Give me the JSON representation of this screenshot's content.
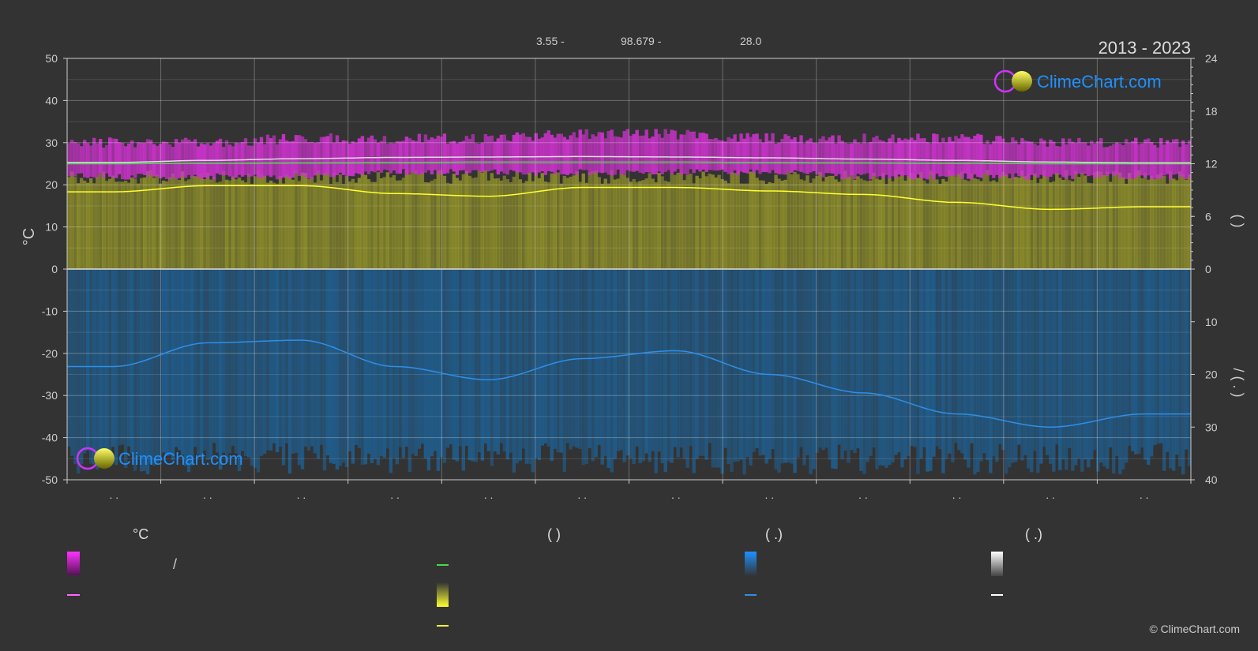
{
  "header": {
    "coords": [
      "3.55 -",
      "98.679 -",
      "28.0"
    ],
    "period": "2013 - 2023",
    "logo": "ClimeChart.com",
    "copyright": "© ClimeChart.com"
  },
  "colors": {
    "background": "#333333",
    "temp_band": "#cc33cc",
    "temp_line": "#ff66ff",
    "sun_band": "#9b9b2a",
    "sun_line": "#ffff33",
    "rain_band": "#1f5f91",
    "rain_line": "#2f8fe6",
    "humidity_line": "#dddddd",
    "green_line": "#44dd44",
    "logo_blue": "#1e90ff"
  },
  "chart_data": {
    "type": "line",
    "months": 12,
    "month_labels": [
      ". .",
      ". .",
      ". .",
      ". .",
      ". .",
      ". .",
      ". .",
      ". .",
      ". .",
      ". .",
      ". .",
      ". ."
    ],
    "left_axis": {
      "label": "°C",
      "ylim": [
        -50,
        50
      ],
      "ticks": [
        50,
        40,
        30,
        20,
        10,
        0,
        -10,
        -20,
        -30,
        -40,
        -50
      ]
    },
    "right_axis_top": {
      "label": "(  )",
      "ylim": [
        0,
        24
      ],
      "ticks": [
        24,
        18,
        12,
        6,
        0
      ]
    },
    "right_axis_bottom": {
      "label": "/  (  .  )",
      "ylim": [
        0,
        40
      ],
      "ticks": [
        0,
        10,
        20,
        30,
        40
      ]
    },
    "grid": true,
    "series": [
      {
        "key": "temp_max_range",
        "values": [
          30,
          30,
          31,
          31,
          31,
          32,
          32,
          31,
          31,
          31,
          30,
          30
        ]
      },
      {
        "key": "temp_min_range",
        "values": [
          22,
          22,
          22,
          23,
          23,
          23,
          23,
          23,
          22,
          22,
          22,
          22
        ]
      },
      {
        "key": "temp_mean",
        "values": [
          25.3,
          25.8,
          26.2,
          26.5,
          26.6,
          26.7,
          26.6,
          26.4,
          26.1,
          25.8,
          25.4,
          25.2
        ]
      },
      {
        "key": "temp_green",
        "values": [
          25.0,
          25.1,
          25.2,
          25.3,
          25.4,
          25.4,
          25.4,
          25.3,
          25.2,
          25.1,
          25.0,
          25.0
        ]
      },
      {
        "key": "sunshine_hours",
        "values": [
          8.8,
          9.5,
          9.5,
          8.6,
          8.3,
          9.3,
          9.3,
          8.9,
          8.5,
          7.6,
          6.8,
          7.1
        ]
      },
      {
        "key": "precipitation_mm_day",
        "values": [
          18.5,
          14.0,
          13.5,
          18.5,
          21.0,
          17.0,
          15.5,
          20.0,
          23.5,
          27.5,
          30.0,
          27.5
        ]
      }
    ]
  },
  "legend": {
    "col1": {
      "header": "°C",
      "item1": "/"
    },
    "col2": {
      "header": "(         )"
    },
    "col3": {
      "header": "(   .)"
    },
    "col4": {
      "header": "(   .)"
    }
  }
}
